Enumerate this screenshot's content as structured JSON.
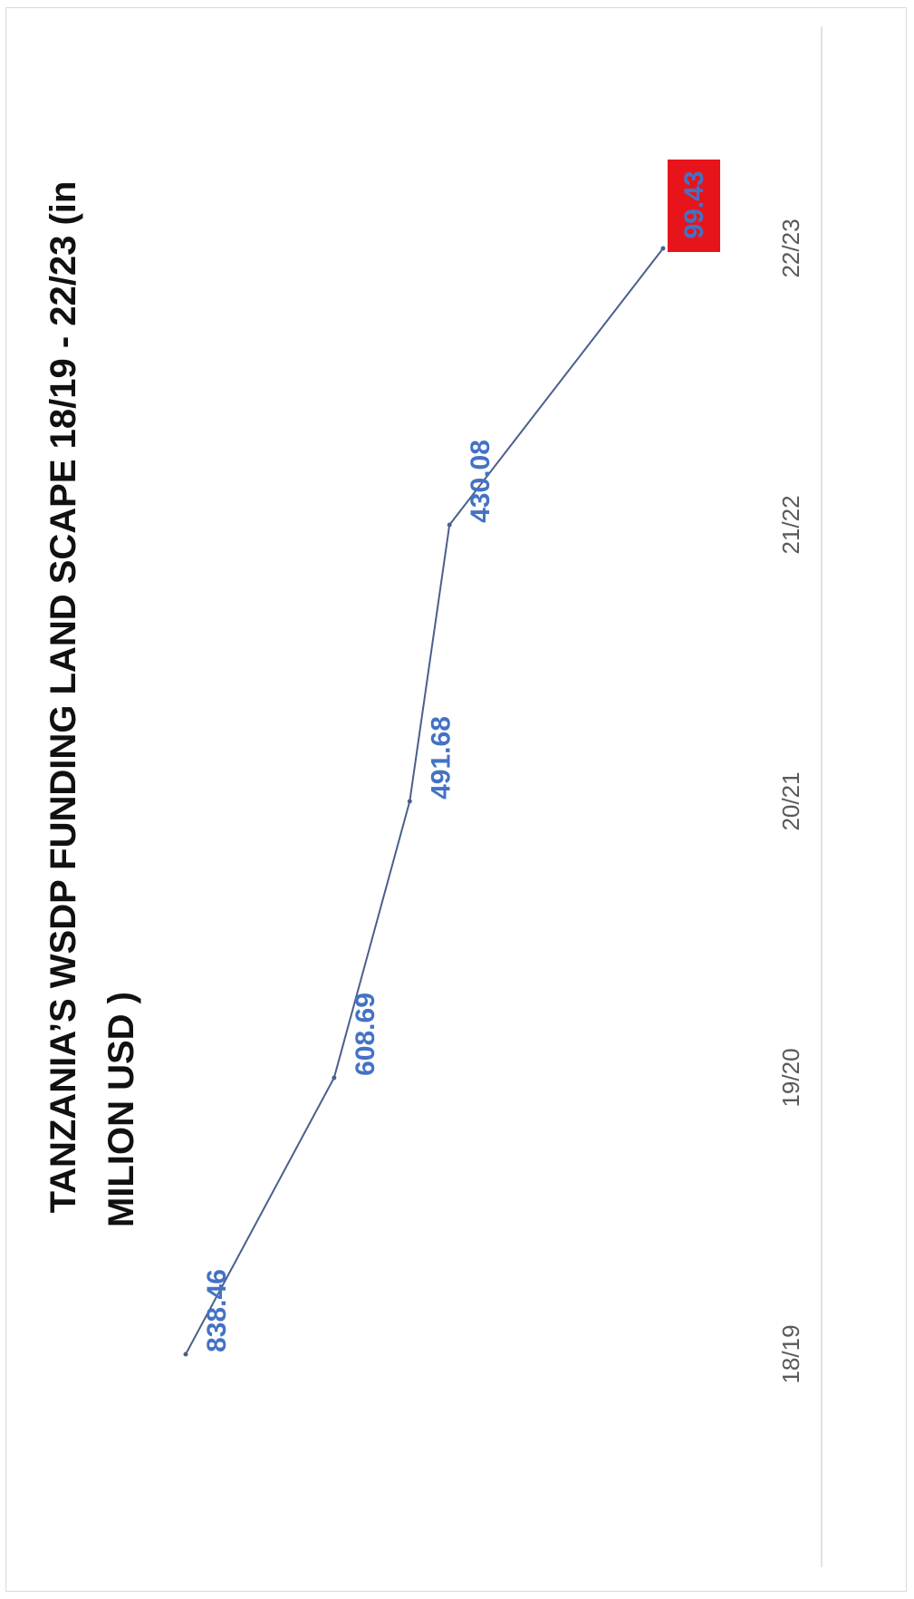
{
  "chart_data": {
    "type": "line",
    "title_line1": "TANZANIA’S WSDP FUNDING LAND SCAPE 18/19 - 22/23  (in",
    "title_line2": "MILION USD   )",
    "categories": [
      "18/19",
      "19/20",
      "20/21",
      "21/22",
      "22/23"
    ],
    "series": [
      {
        "values": [
          838.46,
          608.69,
          491.68,
          430.08,
          99.43
        ]
      }
    ],
    "data_labels": [
      "838.46",
      "608.69",
      "491.68",
      "430.08",
      "99.43"
    ],
    "orientation": "rotated-90-clockwise",
    "highlight": {
      "index": 4,
      "color": "#e8141b"
    },
    "colors": {
      "line": "#4a5f8c",
      "label": "#4472c4",
      "tick": "#595959",
      "title": "#111111",
      "axis": "#d9d9d9"
    },
    "legend": "none",
    "grid": false
  }
}
